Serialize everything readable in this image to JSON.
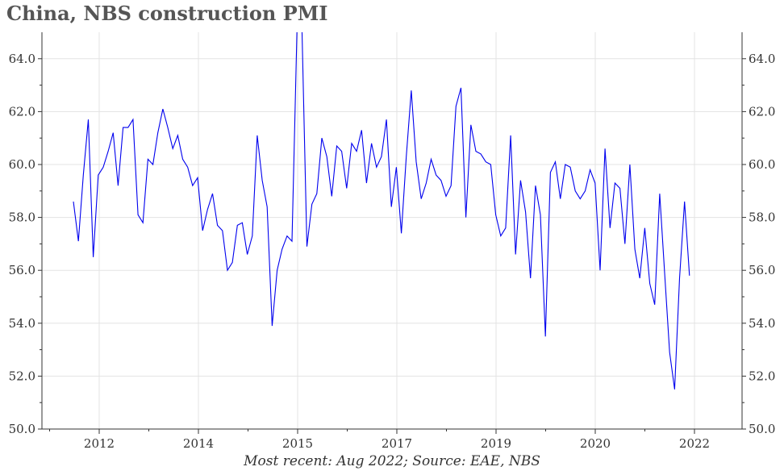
{
  "chart_data": {
    "type": "line",
    "title": "China, NBS construction PMI",
    "footnote": "Most recent: Aug 2022; Source: EAE, NBS",
    "xlabel": "",
    "ylabel": "",
    "ylim": [
      50.0,
      65.0
    ],
    "y_ticks": [
      "50.0",
      "52.0",
      "54.0",
      "56.0",
      "58.0",
      "60.0",
      "62.0",
      "64.0"
    ],
    "x_ticks": [
      "2012",
      "2014",
      "2015",
      "2017",
      "2019",
      "2020",
      "2022"
    ],
    "y_axis_sides": "left and right",
    "grid": true,
    "line_color": "#0000ee",
    "series": [
      {
        "values": [
          58.6,
          57.1,
          59.6,
          61.7,
          56.5,
          59.6,
          59.9,
          60.5,
          61.2,
          59.2,
          61.4,
          61.4,
          61.7,
          58.1,
          57.8,
          60.2,
          60.0,
          61.2,
          62.1,
          61.4,
          60.6,
          61.1,
          60.2,
          59.9,
          59.2,
          59.5,
          57.5,
          58.3,
          58.9,
          57.7,
          57.5,
          56.0,
          56.3,
          57.7,
          57.8,
          56.6,
          57.3,
          61.1,
          59.4,
          58.4,
          53.9,
          56.0,
          56.8,
          57.3,
          57.1,
          65.1,
          65.1,
          56.9,
          58.5,
          58.9,
          61.0,
          60.3,
          58.8,
          60.7,
          60.5,
          59.1,
          60.8,
          60.5,
          61.3,
          59.3,
          60.8,
          59.9,
          60.3,
          61.7,
          58.4,
          59.9,
          57.4,
          60.3,
          62.8,
          60.1,
          58.7,
          59.3,
          60.2,
          59.6,
          59.4,
          58.8,
          59.2,
          62.2,
          62.9,
          58.0,
          61.5,
          60.5,
          60.4,
          60.1,
          60.0,
          58.1,
          57.3,
          57.6,
          61.1,
          56.6,
          59.4,
          58.2,
          55.7,
          59.2,
          58.1,
          53.5,
          59.7,
          60.1,
          58.7,
          60.0,
          59.9,
          59.0,
          58.7,
          59.0,
          59.8,
          59.3,
          56.0,
          60.6,
          57.6,
          59.3,
          59.1,
          57.0,
          60.0,
          56.8,
          55.7,
          57.6,
          55.5,
          54.7,
          58.9,
          55.9,
          52.9,
          51.5,
          55.7,
          58.6,
          55.8
        ]
      }
    ]
  }
}
